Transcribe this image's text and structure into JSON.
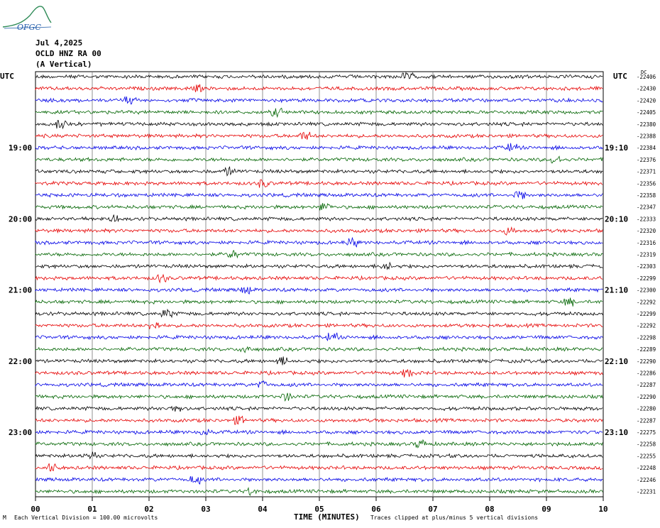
{
  "logo": {
    "text": "OFGC",
    "colors": [
      "#2e8b57",
      "#1e5aa8"
    ]
  },
  "header": {
    "date": "Jul 4,2025",
    "station": "OCLD HNZ RA 00",
    "component": "(A Vertical)"
  },
  "utc_left": "UTC",
  "utc_right": "UTC",
  "dc_label": "DC",
  "footer": {
    "scale": "Each Vertical Division =  100.00 microvolts",
    "clip": "Traces clipped at plus/minus 5 vertical divisions",
    "corner": "M"
  },
  "chart_data": {
    "type": "line",
    "xlabel": "TIME (MINUTES)",
    "xticks": [
      "00",
      "01",
      "02",
      "03",
      "04",
      "05",
      "06",
      "07",
      "08",
      "09",
      "10"
    ],
    "xlim": [
      0,
      10
    ],
    "grid": true,
    "trace_colors": [
      "#000000",
      "#e60000",
      "#0000e6",
      "#006400"
    ],
    "left_time_labels": [
      {
        "row": 6,
        "text": "19:00"
      },
      {
        "row": 12,
        "text": "20:00"
      },
      {
        "row": 18,
        "text": "21:00"
      },
      {
        "row": 24,
        "text": "22:00"
      },
      {
        "row": 30,
        "text": "23:00"
      }
    ],
    "right_time_labels": [
      {
        "row": 6,
        "text": "19:10"
      },
      {
        "row": 12,
        "text": "20:10"
      },
      {
        "row": 18,
        "text": "21:10"
      },
      {
        "row": 24,
        "text": "22:10"
      },
      {
        "row": 30,
        "text": "23:10"
      }
    ],
    "dc_offsets": [
      "-22406",
      "-22430",
      "-22420",
      "-22405",
      "-22380",
      "-22388",
      "-22384",
      "-22376",
      "-22371",
      "-22356",
      "-22358",
      "-22347",
      "-22333",
      "-22320",
      "-22316",
      "-22319",
      "-22303",
      "-22299",
      "-22300",
      "-22292",
      "-22299",
      "-22292",
      "-22298",
      "-22289",
      "-22290",
      "-22286",
      "-22287",
      "-22290",
      "-22280",
      "-22287",
      "-22275",
      "-22258",
      "-22255",
      "-22248",
      "-22246",
      "-22231"
    ]
  }
}
